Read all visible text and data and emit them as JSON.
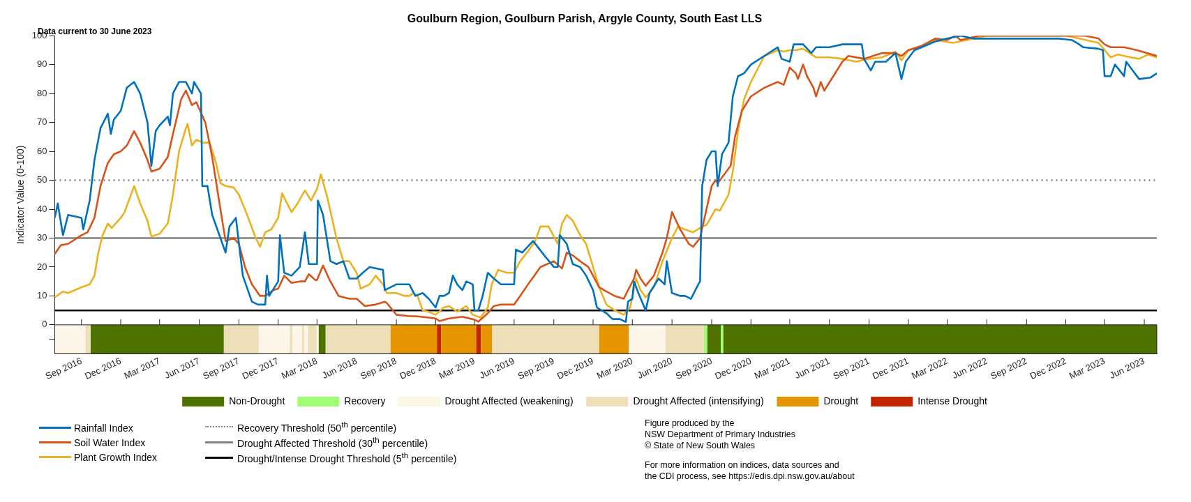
{
  "chart_data": {
    "type": "line",
    "title": "Goulburn Region, Goulburn Parish, Argyle County, South East LLS",
    "ylabel": "Indicator Value (0-100)",
    "xlim": [
      "2016-07-01",
      "2023-06-30"
    ],
    "ylim": [
      -10,
      100
    ],
    "yticks": [
      {
        "value": -5,
        "label": null
      },
      0,
      10,
      20,
      30,
      40,
      50,
      60,
      70,
      80,
      90,
      100
    ],
    "xticks": [
      {
        "value": "2016-09-01",
        "label": "Sep 2016"
      },
      {
        "value": "2016-12-01",
        "label": "Dec 2016"
      },
      {
        "value": "2017-03-01",
        "label": "Mar 2017"
      },
      {
        "value": "2017-06-01",
        "label": "Jun 2017"
      },
      {
        "value": "2017-09-01",
        "label": "Sep 2017"
      },
      {
        "value": "2017-12-01",
        "label": "Dec 2017"
      },
      {
        "value": "2018-03-01",
        "label": "Mar 2018"
      },
      {
        "value": "2018-06-01",
        "label": "Jun 2018"
      },
      {
        "value": "2018-09-01",
        "label": "Sep 2018"
      },
      {
        "value": "2018-12-01",
        "label": "Dec 2018"
      },
      {
        "value": "2019-03-01",
        "label": "Mar 2019"
      },
      {
        "value": "2019-06-01",
        "label": "Jun 2019"
      },
      {
        "value": "2019-09-01",
        "label": "Sep 2019"
      },
      {
        "value": "2019-12-01",
        "label": "Dec 2019"
      },
      {
        "value": "2020-03-01",
        "label": "Mar 2020"
      },
      {
        "value": "2020-06-01",
        "label": "Jun 2020"
      },
      {
        "value": "2020-09-01",
        "label": "Sep 2020"
      },
      {
        "value": "2020-12-01",
        "label": "Dec 2020"
      },
      {
        "value": "2021-03-01",
        "label": "Mar 2021"
      },
      {
        "value": "2021-06-01",
        "label": "Jun 2021"
      },
      {
        "value": "2021-09-01",
        "label": "Sep 2021"
      },
      {
        "value": "2021-12-01",
        "label": "Dec 2021"
      },
      {
        "value": "2022-03-01",
        "label": "Mar 2022"
      },
      {
        "value": "2022-06-01",
        "label": "Jun 2022"
      },
      {
        "value": "2022-09-01",
        "label": "Sep 2022"
      },
      {
        "value": "2022-12-01",
        "label": "Dec 2022"
      },
      {
        "value": "2023-03-01",
        "label": "Mar 2023"
      },
      {
        "value": "2023-06-01",
        "label": "Jun 2023"
      }
    ],
    "marker": "none",
    "line_style": "solid",
    "legend": "bottom",
    "series": [
      {
        "name": "Rainfall Index",
        "color": "#0072bd",
        "x": [
          "2016-07-01",
          "2016-07-08",
          "2016-07-20",
          "2016-08-01",
          "2016-09-01",
          "2016-09-05",
          "2016-09-20",
          "2016-10-01",
          "2016-10-15",
          "2016-11-01",
          "2016-11-08",
          "2016-11-15",
          "2016-12-01",
          "2016-12-15",
          "2017-01-01",
          "2017-01-15",
          "2017-02-01",
          "2017-02-10",
          "2017-02-20",
          "2017-03-01",
          "2017-03-20",
          "2017-03-25",
          "2017-04-01",
          "2017-04-15",
          "2017-05-01",
          "2017-05-15",
          "2017-05-20",
          "2017-06-05",
          "2017-06-08",
          "2017-06-20",
          "2017-07-01",
          "2017-08-01",
          "2017-08-10",
          "2017-08-25",
          "2017-09-01",
          "2017-09-10",
          "2017-10-01",
          "2017-10-15",
          "2017-11-01",
          "2017-11-05",
          "2017-11-10",
          "2017-12-01",
          "2017-12-05",
          "2017-12-15",
          "2018-01-01",
          "2018-01-20",
          "2018-02-01",
          "2018-02-10",
          "2018-03-01",
          "2018-03-03",
          "2018-03-15",
          "2018-04-01",
          "2018-04-15",
          "2018-05-01",
          "2018-05-15",
          "2018-06-01",
          "2018-06-15",
          "2018-07-01",
          "2018-08-01",
          "2018-08-05",
          "2018-09-01",
          "2018-09-20",
          "2018-10-01",
          "2018-10-15",
          "2018-11-01",
          "2018-11-15",
          "2018-12-01",
          "2018-12-10",
          "2018-12-20",
          "2019-01-01",
          "2019-01-10",
          "2019-01-20",
          "2019-02-01",
          "2019-02-10",
          "2019-02-25",
          "2019-03-01",
          "2019-03-10",
          "2019-03-20",
          "2019-04-01",
          "2019-04-15",
          "2019-05-01",
          "2019-06-01",
          "2019-06-05",
          "2019-06-20",
          "2019-07-15",
          "2019-08-10",
          "2019-09-01",
          "2019-09-10",
          "2019-09-15",
          "2019-10-01",
          "2019-10-15",
          "2019-11-01",
          "2019-11-15",
          "2019-12-01",
          "2019-12-10",
          "2020-01-01",
          "2020-01-15",
          "2020-02-01",
          "2020-02-15",
          "2020-02-20",
          "2020-03-01",
          "2020-03-05",
          "2020-03-15",
          "2020-04-01",
          "2020-04-10",
          "2020-05-01",
          "2020-05-15",
          "2020-05-20",
          "2020-06-01",
          "2020-06-20",
          "2020-07-01",
          "2020-07-15",
          "2020-08-01",
          "2020-08-05",
          "2020-08-10",
          "2020-08-20",
          "2020-09-01",
          "2020-09-10",
          "2020-09-15",
          "2020-09-25",
          "2020-10-10",
          "2020-10-20",
          "2020-11-01",
          "2020-11-15",
          "2020-12-01",
          "2021-01-01",
          "2021-02-01",
          "2021-02-10",
          "2021-03-01",
          "2021-03-10",
          "2021-04-01",
          "2021-04-20",
          "2021-05-01",
          "2021-06-01",
          "2021-07-01",
          "2021-08-15",
          "2021-08-20",
          "2021-09-05",
          "2021-09-15",
          "2021-10-10",
          "2021-11-01",
          "2021-11-15",
          "2021-11-25",
          "2021-12-15",
          "2022-01-01",
          "2022-02-01",
          "2022-03-01",
          "2022-04-01",
          "2022-05-01",
          "2022-11-15",
          "2022-12-15",
          "2023-01-01",
          "2023-01-10",
          "2023-02-15",
          "2023-02-25",
          "2023-03-01",
          "2023-03-15",
          "2023-03-25",
          "2023-04-10",
          "2023-04-15",
          "2023-04-20",
          "2023-05-05",
          "2023-05-20",
          "2023-06-15",
          "2023-06-30"
        ],
        "values": [
          37,
          42,
          31,
          38,
          37,
          33,
          43,
          57,
          68,
          73,
          66,
          71,
          74,
          82,
          84,
          80,
          70,
          55,
          67,
          69,
          72,
          69,
          80,
          84,
          84,
          80,
          84,
          80,
          48,
          48,
          38,
          25,
          34,
          37,
          28,
          17,
          8,
          7,
          7,
          17,
          10,
          15,
          31,
          18,
          17,
          20,
          32,
          21,
          21,
          43,
          38,
          22,
          21,
          22,
          16,
          16,
          18,
          20,
          19,
          12,
          14,
          14,
          14,
          10,
          11,
          9,
          6,
          10,
          10,
          11,
          17,
          14,
          12,
          15,
          14,
          5,
          5,
          10,
          18,
          16,
          14,
          14,
          26,
          25,
          29,
          24,
          20,
          20,
          31,
          28,
          21,
          20,
          17,
          12,
          6,
          4,
          2,
          2,
          1,
          8,
          9,
          15,
          11,
          5,
          11,
          16,
          14,
          22,
          11,
          10,
          10,
          9,
          14,
          15,
          48,
          57,
          60,
          60,
          48,
          59,
          63,
          79,
          86,
          87,
          90,
          93,
          96,
          92,
          91,
          97,
          97,
          94,
          96,
          96,
          97,
          97,
          92,
          88,
          91,
          91,
          94,
          85,
          91,
          95,
          96,
          98,
          99,
          100,
          99,
          99,
          98.5,
          97,
          96,
          95.5,
          95,
          86,
          86,
          90,
          87,
          86,
          91,
          88,
          85,
          85.5,
          87
        ]
      },
      {
        "name": "Soil Water Index",
        "color": "#d95319",
        "x": [
          "2016-07-01",
          "2016-07-15",
          "2016-08-01",
          "2016-09-01",
          "2016-09-15",
          "2016-10-01",
          "2016-10-15",
          "2016-11-01",
          "2016-11-15",
          "2016-12-01",
          "2016-12-15",
          "2017-01-01",
          "2017-01-15",
          "2017-02-01",
          "2017-02-10",
          "2017-03-01",
          "2017-03-20",
          "2017-04-01",
          "2017-04-20",
          "2017-05-01",
          "2017-05-15",
          "2017-05-25",
          "2017-06-15",
          "2017-07-01",
          "2017-07-20",
          "2017-08-01",
          "2017-08-20",
          "2017-09-01",
          "2017-09-15",
          "2017-10-01",
          "2017-10-20",
          "2017-11-01",
          "2017-11-20",
          "2017-12-01",
          "2017-12-15",
          "2018-01-01",
          "2018-01-20",
          "2018-02-01",
          "2018-02-10",
          "2018-02-25",
          "2018-03-01",
          "2018-03-15",
          "2018-04-01",
          "2018-04-20",
          "2018-05-15",
          "2018-06-01",
          "2018-06-20",
          "2018-07-15",
          "2018-08-05",
          "2018-08-10",
          "2018-09-01",
          "2018-10-01",
          "2018-10-15",
          "2018-11-15",
          "2018-12-01",
          "2018-12-10",
          "2019-01-01",
          "2019-02-01",
          "2019-03-01",
          "2019-03-10",
          "2019-04-01",
          "2019-04-15",
          "2019-05-01",
          "2019-06-01",
          "2019-06-15",
          "2019-07-01",
          "2019-08-01",
          "2019-09-01",
          "2019-09-20",
          "2019-10-01",
          "2019-10-15",
          "2019-11-01",
          "2019-11-20",
          "2019-12-01",
          "2019-12-15",
          "2020-01-01",
          "2020-01-20",
          "2020-02-10",
          "2020-02-20",
          "2020-03-05",
          "2020-03-10",
          "2020-03-20",
          "2020-04-01",
          "2020-04-20",
          "2020-05-10",
          "2020-05-20",
          "2020-06-01",
          "2020-06-20",
          "2020-07-10",
          "2020-07-20",
          "2020-08-05",
          "2020-08-20",
          "2020-09-01",
          "2020-09-10",
          "2020-09-15",
          "2020-10-15",
          "2020-10-25",
          "2020-11-10",
          "2020-12-01",
          "2021-01-01",
          "2021-02-01",
          "2021-02-15",
          "2021-03-01",
          "2021-03-15",
          "2021-03-20",
          "2021-04-01",
          "2021-04-10",
          "2021-04-25",
          "2021-05-01",
          "2021-05-12",
          "2021-05-20",
          "2021-07-01",
          "2021-07-15",
          "2021-08-20",
          "2021-10-01",
          "2021-11-01",
          "2021-11-15",
          "2021-12-01",
          "2022-01-01",
          "2022-02-01",
          "2022-03-01",
          "2022-03-20",
          "2022-04-01",
          "2022-05-15",
          "2022-06-01",
          "2022-12-01",
          "2023-01-15",
          "2023-02-15",
          "2023-03-01",
          "2023-03-15",
          "2023-04-15",
          "2023-05-15",
          "2023-06-30"
        ],
        "values": [
          24.5,
          27.5,
          28,
          31,
          32,
          37,
          48,
          56,
          59,
          60,
          62,
          67,
          63,
          57,
          53,
          54,
          58,
          66,
          78,
          81,
          76,
          77,
          70,
          58,
          40,
          29,
          30,
          28,
          20,
          14,
          10,
          10,
          12,
          12.5,
          17,
          14.5,
          15,
          15,
          17.5,
          15.5,
          15.5,
          20.5,
          15,
          10,
          9,
          9,
          6.5,
          7,
          8,
          7.5,
          3.5,
          3,
          3,
          2.5,
          2.2,
          1.3,
          2.2,
          2.8,
          1.8,
          1.1,
          4,
          6.5,
          7,
          7,
          10,
          13.5,
          20,
          22,
          19.5,
          25,
          24,
          22,
          20,
          17,
          13,
          11.5,
          10,
          9,
          12,
          16,
          19,
          16,
          13.5,
          17,
          25,
          30,
          39,
          33,
          28,
          27,
          30,
          40,
          48,
          50,
          49,
          55,
          65,
          74,
          79,
          82,
          84,
          83,
          89,
          87,
          85,
          90,
          86,
          82,
          79,
          84,
          81,
          91,
          93,
          92,
          94,
          94,
          93,
          95,
          96.5,
          99,
          98.5,
          100,
          98.5,
          100,
          100,
          100,
          100,
          99,
          97,
          96,
          96,
          95,
          93
        ]
      },
      {
        "name": "Plant Growth Index",
        "color": "#edb120",
        "x": [
          "2016-07-01",
          "2016-07-20",
          "2016-08-01",
          "2016-09-01",
          "2016-09-20",
          "2016-10-01",
          "2016-10-10",
          "2016-10-20",
          "2016-11-01",
          "2016-11-10",
          "2016-12-01",
          "2016-12-10",
          "2017-01-01",
          "2017-01-15",
          "2017-02-01",
          "2017-02-10",
          "2017-03-01",
          "2017-03-20",
          "2017-04-01",
          "2017-04-15",
          "2017-05-01",
          "2017-05-05",
          "2017-05-15",
          "2017-05-25",
          "2017-06-10",
          "2017-06-25",
          "2017-07-10",
          "2017-07-20",
          "2017-08-01",
          "2017-08-20",
          "2017-09-01",
          "2017-09-20",
          "2017-10-10",
          "2017-10-20",
          "2017-11-01",
          "2017-11-15",
          "2017-12-01",
          "2017-12-10",
          "2017-12-25",
          "2018-01-01",
          "2018-01-15",
          "2018-02-01",
          "2018-02-15",
          "2018-03-01",
          "2018-03-10",
          "2018-03-25",
          "2018-04-15",
          "2018-05-01",
          "2018-05-15",
          "2018-06-01",
          "2018-06-10",
          "2018-07-01",
          "2018-07-15",
          "2018-08-01",
          "2018-08-10",
          "2018-09-01",
          "2018-09-20",
          "2018-10-01",
          "2018-10-10",
          "2018-10-20",
          "2018-11-01",
          "2018-11-15",
          "2018-12-01",
          "2018-12-20",
          "2019-01-01",
          "2019-01-20",
          "2019-02-10",
          "2019-02-25",
          "2019-03-15",
          "2019-04-01",
          "2019-04-10",
          "2019-04-25",
          "2019-05-15",
          "2019-06-01",
          "2019-06-15",
          "2019-07-01",
          "2019-07-20",
          "2019-08-01",
          "2019-08-20",
          "2019-09-10",
          "2019-09-20",
          "2019-10-01",
          "2019-10-15",
          "2019-11-01",
          "2019-11-15",
          "2019-12-01",
          "2019-12-15",
          "2020-01-01",
          "2020-01-20",
          "2020-02-10",
          "2020-02-25",
          "2020-03-10",
          "2020-03-20",
          "2020-04-01",
          "2020-04-20",
          "2020-05-10",
          "2020-06-01",
          "2020-06-15",
          "2020-07-01",
          "2020-07-20",
          "2020-08-10",
          "2020-08-20",
          "2020-09-10",
          "2020-09-20",
          "2020-10-10",
          "2020-10-20",
          "2020-11-01",
          "2020-11-15",
          "2020-12-01",
          "2021-01-01",
          "2021-02-01",
          "2021-02-15",
          "2021-03-01",
          "2021-03-15",
          "2021-04-01",
          "2021-05-01",
          "2021-06-01",
          "2021-07-01",
          "2021-08-01",
          "2021-09-01",
          "2021-10-01",
          "2021-11-01",
          "2021-11-15",
          "2021-12-01",
          "2022-01-01",
          "2022-02-01",
          "2022-03-15",
          "2022-04-15",
          "2022-06-01",
          "2022-12-01",
          "2023-01-01",
          "2023-02-15",
          "2023-03-01",
          "2023-03-15",
          "2023-04-01",
          "2023-05-01",
          "2023-05-20",
          "2023-06-10",
          "2023-06-30"
        ],
        "values": [
          9.5,
          11.5,
          11,
          13,
          14,
          17,
          25,
          31,
          35,
          33.5,
          37,
          39,
          48,
          42,
          36,
          30.5,
          31.5,
          35,
          45,
          60,
          68,
          69.5,
          62,
          64,
          63,
          63,
          56,
          49,
          48,
          47.5,
          45,
          38,
          30,
          27,
          32,
          33,
          37,
          45.5,
          41,
          39,
          42,
          46.5,
          43,
          47,
          52,
          44,
          30,
          22,
          22,
          18,
          12.5,
          14,
          17,
          14,
          11,
          11,
          10,
          10,
          11,
          10,
          5,
          4.5,
          3.5,
          6,
          6.5,
          4.5,
          6.5,
          3.5,
          2.5,
          6,
          14,
          19,
          18,
          18,
          22,
          25,
          29,
          34,
          34,
          28,
          35,
          38,
          36,
          31,
          28,
          20,
          13,
          7,
          5,
          3.5,
          6,
          16,
          12,
          9.5,
          13,
          22,
          30,
          34,
          33,
          32,
          34,
          34.5,
          40,
          39.5,
          45,
          53,
          67,
          78,
          84,
          93,
          95,
          94.5,
          95,
          95,
          95.5,
          92.5,
          92.5,
          92,
          91,
          92,
          92.5,
          94.5,
          91.5,
          95,
          96.5,
          98.5,
          97.5,
          98.5,
          100,
          100,
          99,
          97.5,
          95,
          92.5,
          93.5,
          92.5,
          92,
          93.5,
          92.5
        ]
      }
    ],
    "ref_lines": [
      {
        "axis": "y",
        "value": 50,
        "label": "Recovery Threshold (50$^{th}$ percentile)",
        "color": "#808080",
        "line_style": "dotted"
      },
      {
        "axis": "y",
        "value": 30,
        "label": "Drought Affected Threshold (30$^{th}$ percentile)",
        "color": "#808080",
        "line_style": "solid"
      },
      {
        "axis": "y",
        "value": 5,
        "label": "Drought/Intense Drought Threshold (5$^{th}$ percentile)",
        "color": "#000000",
        "line_style": "solid"
      }
    ],
    "bands": [
      {
        "axis": "x",
        "from": "2016-09-22",
        "to": "2017-07-28",
        "label": "Non-Drought",
        "color": "#4e7200"
      },
      {
        "axis": "x",
        "from": "2020-08-14",
        "to": "2020-08-22",
        "label": "Recovery",
        "color": "#a2ff73"
      },
      {
        "axis": "x",
        "from": "2016-07-01",
        "to": "2016-09-10",
        "label": "Drought Affected (weakening)",
        "color": "#fdf5e8"
      },
      {
        "axis": "x",
        "from": "2016-09-10",
        "to": "2016-09-22",
        "label": "Drought Affected (intensifying)",
        "color": "#ede0b9"
      },
      {
        "axis": "x",
        "from": "2018-08-18",
        "to": "2018-12-04",
        "label": "Drought",
        "color": "#e69500"
      },
      {
        "axis": "x",
        "from": "2018-12-04",
        "to": "2018-12-14",
        "label": "Intense Drought",
        "color": "#c22500"
      },
      {
        "axis": "x",
        "from": "2017-07-28",
        "to": "2017-10-17",
        "color": "#ede0b9"
      },
      {
        "axis": "x",
        "from": "2017-10-17",
        "to": "2018-03-05",
        "color": "#fdf5e8"
      },
      {
        "axis": "x",
        "from": "2017-12-28",
        "to": "2018-01-03",
        "color": "#ede0b9"
      },
      {
        "axis": "x",
        "from": "2018-01-25",
        "to": "2018-01-30",
        "color": "#ede0b9"
      },
      {
        "axis": "x",
        "from": "2018-02-08",
        "to": "2018-02-28",
        "color": "#ede0b9"
      },
      {
        "axis": "x",
        "from": "2018-03-05",
        "to": "2018-03-21",
        "color": "#4e7200"
      },
      {
        "axis": "x",
        "from": "2018-03-21",
        "to": "2018-08-18",
        "color": "#ede0b9"
      },
      {
        "axis": "x",
        "from": "2018-12-14",
        "to": "2019-03-05",
        "color": "#e69500"
      },
      {
        "axis": "x",
        "from": "2019-03-05",
        "to": "2019-03-16",
        "color": "#c22500"
      },
      {
        "axis": "x",
        "from": "2019-03-16",
        "to": "2019-04-11",
        "color": "#e69500"
      },
      {
        "axis": "x",
        "from": "2019-04-11",
        "to": "2019-12-15",
        "color": "#ede0b9"
      },
      {
        "axis": "x",
        "from": "2019-12-15",
        "to": "2020-02-22",
        "color": "#e69500"
      },
      {
        "axis": "x",
        "from": "2020-02-22",
        "to": "2020-05-17",
        "color": "#fdf5e8"
      },
      {
        "axis": "x",
        "from": "2020-05-17",
        "to": "2020-08-14",
        "color": "#ede0b9"
      },
      {
        "axis": "x",
        "from": "2020-08-22",
        "to": "2020-09-22",
        "color": "#4e7200"
      },
      {
        "axis": "x",
        "from": "2020-09-22",
        "to": "2020-09-28",
        "color": "#a2ff73"
      },
      {
        "axis": "x",
        "from": "2020-09-28",
        "to": "2023-06-30",
        "color": "#4e7200"
      }
    ],
    "annotations": [
      "Data current to 30 June 2023",
      "Figure produced by the\nNSW Department of Primary Industries\n© State of New South Wales",
      "For more information on indices, data sources and\nthe CDI process, see https://edis.dpi.nsw.gov.au/about"
    ]
  }
}
